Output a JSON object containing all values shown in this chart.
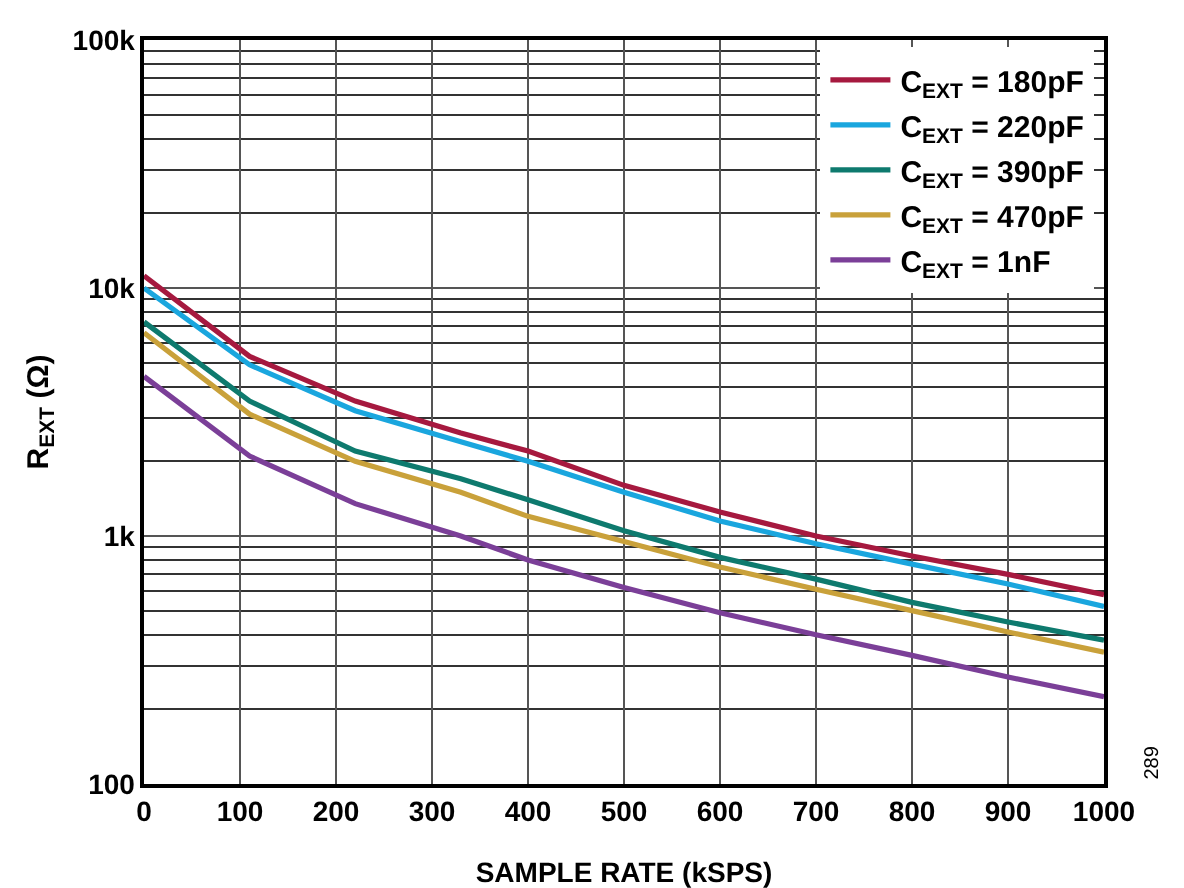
{
  "chart_data": {
    "type": "line",
    "xlabel": "SAMPLE RATE (kSPS)",
    "ylabel": "R$_{EXT}$ (Ω)",
    "log": "y",
    "grid": true,
    "legend": "top right",
    "marker": "none",
    "line_style": "solid",
    "x": [
      0,
      110,
      220,
      330,
      400,
      500,
      600,
      700,
      800,
      900,
      1000
    ],
    "xlim": [
      0,
      1000
    ],
    "xticks": [
      0,
      100,
      200,
      300,
      400,
      500,
      600,
      700,
      800,
      900,
      1000
    ],
    "ylim": [
      100,
      100000
    ],
    "yticks": [
      100,
      {
        "value": 1000,
        "label": "1k"
      },
      {
        "value": 10000,
        "label": "10k"
      },
      {
        "value": 100000,
        "label": "100k"
      }
    ],
    "series": [
      {
        "name": "C$_{EXT}$ = 180pF",
        "color": "#a6193f",
        "values": [
          11200,
          5300,
          3500,
          2600,
          2200,
          1600,
          1250,
          1000,
          830,
          700,
          580
        ]
      },
      {
        "name": "C$_{EXT}$ = 220pF",
        "color": "#1aa6de",
        "values": [
          10000,
          4900,
          3200,
          2400,
          2000,
          1500,
          1150,
          930,
          770,
          640,
          520
        ]
      },
      {
        "name": "C$_{EXT}$ = 390pF",
        "color": "#0e7a6e",
        "values": [
          7300,
          3500,
          2200,
          1700,
          1400,
          1050,
          820,
          670,
          540,
          450,
          380
        ]
      },
      {
        "name": "C$_{EXT}$ = 470pF",
        "color": "#c9a13a",
        "values": [
          6600,
          3100,
          2000,
          1500,
          1200,
          950,
          750,
          610,
          500,
          410,
          340
        ]
      },
      {
        "name": "C$_{EXT}$ = 1nF",
        "color": "#7b3f98",
        "values": [
          4400,
          2100,
          1350,
          1000,
          800,
          620,
          490,
          400,
          330,
          270,
          225
        ]
      }
    ],
    "annotations": [
      "289"
    ]
  }
}
